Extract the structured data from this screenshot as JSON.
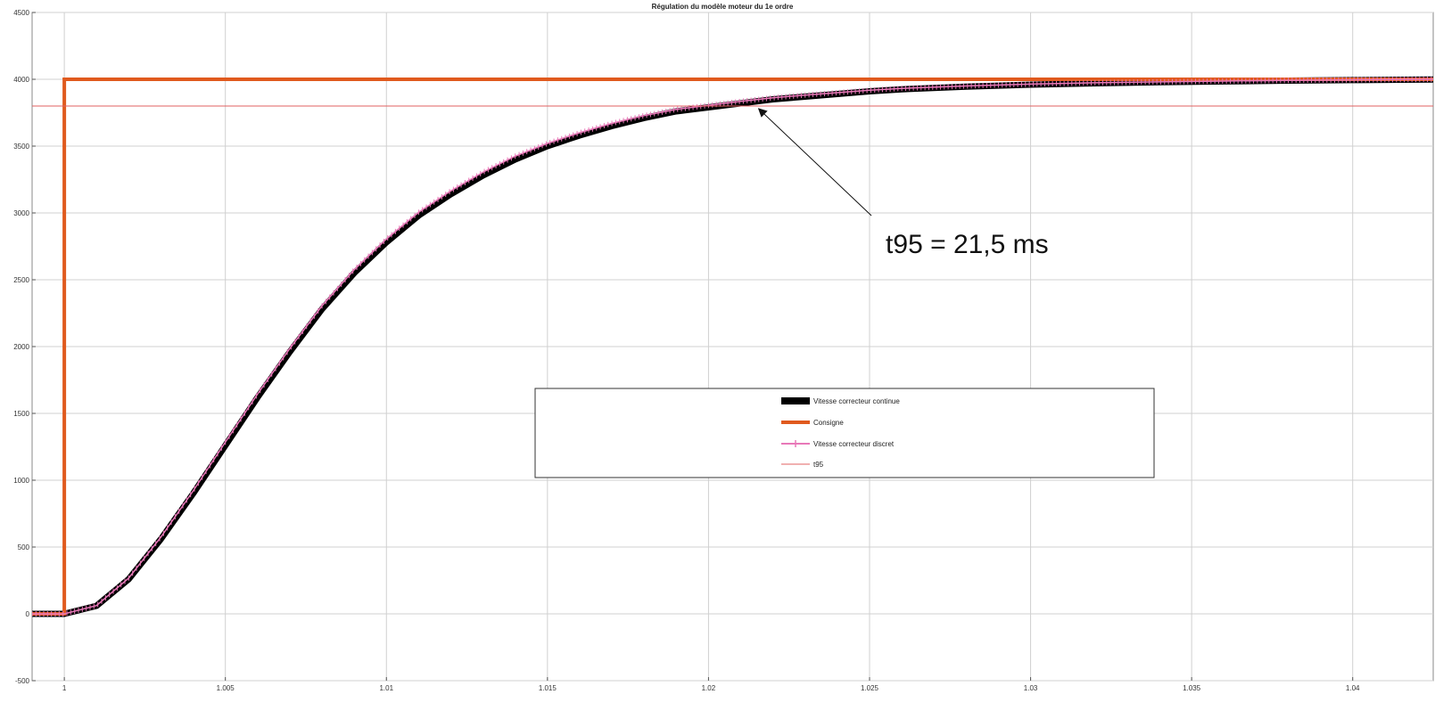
{
  "chart_data": {
    "type": "line",
    "title": "Régulation du modèle moteur du 1e ordre",
    "xlabel": "",
    "ylabel": "",
    "xlim": [
      0.999,
      1.0425
    ],
    "ylim": [
      -500,
      4500
    ],
    "grid": true,
    "legend_position": "center-right",
    "x_ticks": [
      1,
      1.005,
      1.01,
      1.015,
      1.02,
      1.025,
      1.03,
      1.035,
      1.04
    ],
    "x_tick_labels": [
      "1",
      "1.005",
      "1.01",
      "1.015",
      "1.02",
      "1.025",
      "1.03",
      "1.035",
      "1.04"
    ],
    "y_ticks": [
      -500,
      0,
      500,
      1000,
      1500,
      2000,
      2500,
      3000,
      3500,
      4000,
      4500
    ],
    "y_tick_labels": [
      "-500",
      "0",
      "500",
      "1000",
      "1500",
      "2000",
      "2500",
      "3000",
      "3500",
      "4000",
      "4500"
    ],
    "series": [
      {
        "name": "Vitesse correcteur continue",
        "color": "#000000",
        "style": "solid-thick",
        "x": [
          0.999,
          1.0,
          1.001,
          1.002,
          1.003,
          1.004,
          1.005,
          1.006,
          1.007,
          1.008,
          1.009,
          1.01,
          1.011,
          1.012,
          1.013,
          1.014,
          1.015,
          1.016,
          1.017,
          1.018,
          1.019,
          1.02,
          1.021,
          1.022,
          1.023,
          1.024,
          1.025,
          1.026,
          1.028,
          1.03,
          1.032,
          1.034,
          1.036,
          1.038,
          1.04,
          1.0425
        ],
        "y": [
          0,
          0,
          60,
          260,
          560,
          900,
          1260,
          1620,
          1960,
          2280,
          2550,
          2780,
          2980,
          3140,
          3280,
          3400,
          3500,
          3580,
          3650,
          3710,
          3760,
          3790,
          3820,
          3850,
          3870,
          3890,
          3910,
          3925,
          3945,
          3960,
          3970,
          3978,
          3984,
          3990,
          3994,
          3998
        ]
      },
      {
        "name": "Consigne",
        "color": "#e05a1e",
        "style": "solid-thick",
        "x": [
          0.999,
          1.0,
          1.0,
          1.0425
        ],
        "y": [
          0,
          0,
          4000,
          4000
        ]
      },
      {
        "name": "Vitesse correcteur discret",
        "color": "#e878b8",
        "style": "plus-markers",
        "x": [
          0.999,
          1.0,
          1.001,
          1.002,
          1.003,
          1.004,
          1.005,
          1.006,
          1.007,
          1.008,
          1.009,
          1.01,
          1.011,
          1.012,
          1.013,
          1.014,
          1.015,
          1.016,
          1.017,
          1.018,
          1.019,
          1.02,
          1.021,
          1.022,
          1.023,
          1.024,
          1.025,
          1.026,
          1.028,
          1.03,
          1.032,
          1.034,
          1.036,
          1.038,
          1.04,
          1.0425
        ],
        "y": [
          0,
          0,
          62,
          268,
          575,
          920,
          1285,
          1645,
          1985,
          2305,
          2575,
          2805,
          3005,
          3165,
          3305,
          3425,
          3520,
          3600,
          3670,
          3728,
          3775,
          3805,
          3835,
          3862,
          3882,
          3900,
          3918,
          3932,
          3950,
          3964,
          3974,
          3981,
          3987,
          3992,
          3996,
          4000
        ]
      },
      {
        "name": "t95",
        "color": "#e06060",
        "style": "solid-thin",
        "x": [
          0.999,
          1.0425
        ],
        "y": [
          3800,
          3800
        ]
      }
    ],
    "annotations": [
      {
        "text": "t95 = 21,5 ms",
        "point_x": 1.0215,
        "point_y": 3800,
        "text_x": 1.0255,
        "text_y": 2700
      }
    ]
  }
}
